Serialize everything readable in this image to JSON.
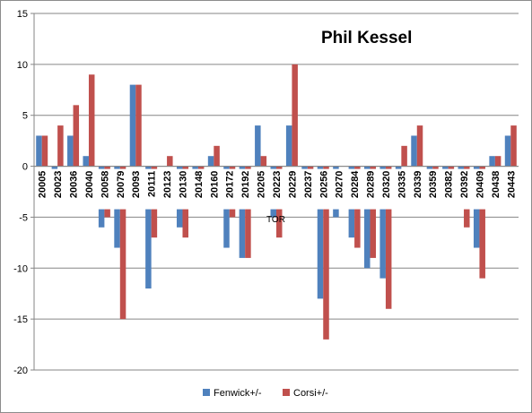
{
  "chart_data": {
    "type": "bar",
    "title": "Phil Kessel",
    "annotation": "TOR",
    "ylim": [
      -20,
      15
    ],
    "yticks": [
      -20,
      -15,
      -10,
      -5,
      0,
      5,
      10,
      15
    ],
    "grid": true,
    "legend_position": "bottom",
    "categories": [
      "20005",
      "20023",
      "20036",
      "20040",
      "20058",
      "20079",
      "20093",
      "20111",
      "20123",
      "20130",
      "20148",
      "20160",
      "20172",
      "20192",
      "20205",
      "20223",
      "20229",
      "20237",
      "20256",
      "20270",
      "20284",
      "20289",
      "20320",
      "20335",
      "20339",
      "20359",
      "20382",
      "20392",
      "20409",
      "20438",
      "20443"
    ],
    "series": [
      {
        "name": "Fenwick+/-",
        "color": "#4f81bd",
        "values": [
          3,
          -1,
          3,
          1,
          -6,
          -8,
          8,
          -12,
          0,
          -6,
          -3,
          1,
          -8,
          -9,
          4,
          -5,
          4,
          -2,
          -13,
          -5,
          -7,
          -10,
          -11,
          -1,
          3,
          -3,
          -4,
          -3,
          -8,
          1,
          3
        ]
      },
      {
        "name": "Corsi+/-",
        "color": "#c0504d",
        "values": [
          3,
          4,
          6,
          9,
          -5,
          -15,
          8,
          -7,
          1,
          -7,
          -3,
          2,
          -5,
          -9,
          1,
          -7,
          10,
          -1,
          -17,
          0,
          -8,
          -9,
          -14,
          2,
          4,
          -2,
          -4,
          -6,
          -11,
          1,
          4
        ]
      }
    ]
  }
}
